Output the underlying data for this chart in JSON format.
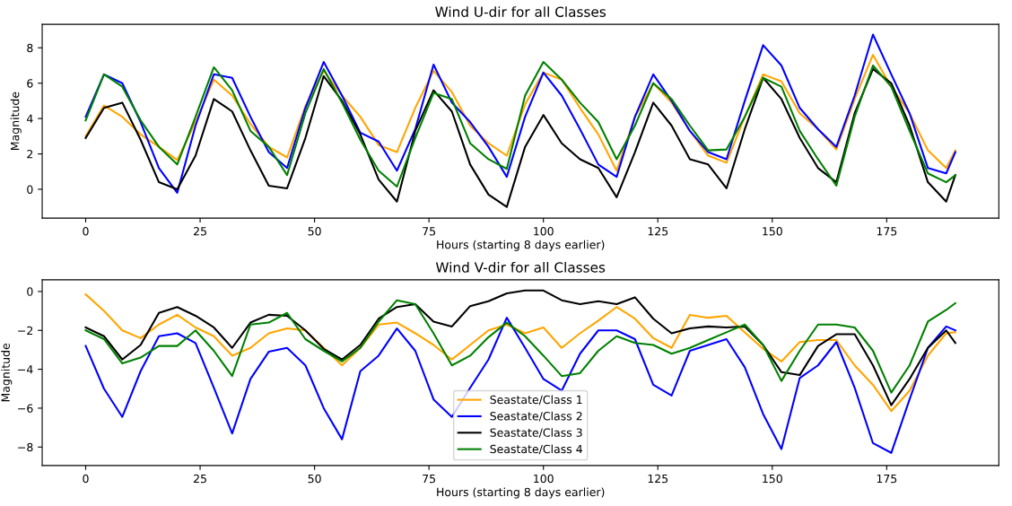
{
  "chart_data": [
    {
      "type": "line",
      "title": "Wind U-dir for all Classes",
      "xlabel": "Hours (starting 8 days earlier)",
      "ylabel": "Magnitude",
      "x": [
        0,
        4,
        8,
        12,
        16,
        20,
        24,
        28,
        32,
        36,
        40,
        44,
        48,
        52,
        56,
        60,
        64,
        68,
        72,
        76,
        80,
        84,
        88,
        92,
        96,
        100,
        104,
        108,
        112,
        116,
        120,
        124,
        128,
        132,
        136,
        140,
        144,
        148,
        152,
        156,
        160,
        164,
        168,
        172,
        176,
        180,
        184,
        188,
        190
      ],
      "xlim": [
        -9.5,
        199.5
      ],
      "xticks": [
        0,
        25,
        50,
        75,
        100,
        125,
        150,
        175
      ],
      "ylim": [
        -1.63,
        9.33
      ],
      "yticks": [
        0,
        2,
        4,
        6,
        8
      ],
      "grid": false,
      "legend": false,
      "series": [
        {
          "color": "#ffa500",
          "values": [
            3.0,
            4.74,
            4.1,
            3.1,
            2.4,
            1.65,
            3.8,
            6.2,
            5.3,
            3.7,
            2.4,
            1.8,
            4.7,
            6.7,
            5.3,
            4.1,
            2.5,
            2.1,
            4.6,
            6.7,
            5.5,
            3.6,
            2.6,
            1.9,
            4.8,
            6.6,
            6.2,
            4.6,
            3.1,
            1.05,
            4.1,
            6.0,
            4.9,
            3.3,
            1.9,
            1.5,
            4.1,
            6.5,
            6.1,
            4.3,
            3.4,
            2.25,
            5.1,
            7.6,
            5.8,
            4.3,
            2.2,
            1.2,
            2.2
          ]
        },
        {
          "color": "#0000ff",
          "values": [
            4.1,
            6.5,
            6.0,
            3.8,
            1.2,
            -0.2,
            3.6,
            6.5,
            6.3,
            4.1,
            2.1,
            1.2,
            4.6,
            7.2,
            5.3,
            3.2,
            2.7,
            1.05,
            3.4,
            7.05,
            4.9,
            3.8,
            2.4,
            0.7,
            4.1,
            6.6,
            5.3,
            3.4,
            1.4,
            0.7,
            4.1,
            6.5,
            5.0,
            3.3,
            2.1,
            1.7,
            5.0,
            8.15,
            7.0,
            4.6,
            3.4,
            2.4,
            5.3,
            8.75,
            6.5,
            4.3,
            1.2,
            0.9,
            2.1
          ]
        },
        {
          "color": "#000000",
          "values": [
            2.9,
            4.6,
            4.9,
            2.8,
            0.4,
            0.0,
            1.9,
            5.1,
            4.4,
            2.2,
            0.2,
            0.05,
            2.9,
            6.4,
            5.0,
            3.1,
            0.55,
            -0.7,
            3.3,
            5.6,
            4.4,
            1.4,
            -0.3,
            -1.0,
            2.4,
            4.2,
            2.6,
            1.7,
            1.2,
            -0.45,
            2.1,
            4.9,
            3.6,
            1.7,
            1.4,
            0.05,
            3.4,
            6.3,
            5.1,
            2.9,
            1.2,
            0.4,
            4.3,
            6.8,
            6.0,
            3.6,
            0.4,
            -0.7,
            0.8
          ]
        },
        {
          "color": "#008000",
          "values": [
            3.9,
            6.5,
            5.8,
            3.9,
            2.4,
            1.4,
            4.1,
            6.9,
            5.6,
            3.3,
            2.4,
            0.8,
            4.3,
            6.8,
            4.9,
            2.8,
            1.05,
            0.15,
            2.9,
            5.45,
            5.1,
            2.6,
            1.7,
            1.15,
            5.3,
            7.2,
            6.2,
            4.9,
            3.8,
            1.7,
            3.6,
            6.0,
            5.1,
            3.6,
            2.2,
            2.25,
            4.1,
            6.3,
            5.8,
            3.3,
            1.7,
            0.2,
            4.1,
            7.0,
            5.8,
            3.3,
            0.9,
            0.4,
            0.8
          ]
        }
      ]
    },
    {
      "type": "line",
      "title": "Wind V-dir for all Classes",
      "xlabel": "Hours (starting 8 days earlier)",
      "ylabel": "Magnitude",
      "x": [
        0,
        4,
        8,
        12,
        16,
        20,
        24,
        28,
        32,
        36,
        40,
        44,
        48,
        52,
        56,
        60,
        64,
        68,
        72,
        76,
        80,
        84,
        88,
        92,
        96,
        100,
        104,
        108,
        112,
        116,
        120,
        124,
        128,
        132,
        136,
        140,
        144,
        148,
        152,
        156,
        160,
        164,
        168,
        172,
        176,
        180,
        184,
        188,
        190
      ],
      "xlim": [
        -9.5,
        199.5
      ],
      "xticks": [
        0,
        25,
        50,
        75,
        100,
        125,
        150,
        175
      ],
      "ylim": [
        -8.95,
        0.6
      ],
      "yticks": [
        {
          "value": -8,
          "label": "−8"
        },
        {
          "value": -6,
          "label": "−6"
        },
        {
          "value": -4,
          "label": "−4"
        },
        {
          "value": -2,
          "label": "−2"
        },
        0
      ],
      "grid": false,
      "legend": "bottom",
      "series": [
        {
          "name": "Seastate/Class 1",
          "color": "#ffa500",
          "values": [
            -0.15,
            -1.0,
            -2.0,
            -2.4,
            -1.7,
            -1.2,
            -1.85,
            -2.3,
            -3.3,
            -2.9,
            -2.15,
            -1.9,
            -2.0,
            -2.9,
            -3.8,
            -2.9,
            -1.7,
            -1.6,
            -2.15,
            -2.75,
            -3.5,
            -2.75,
            -2.0,
            -1.7,
            -2.15,
            -1.85,
            -2.9,
            -2.15,
            -1.5,
            -0.8,
            -1.4,
            -2.4,
            -2.9,
            -1.2,
            -1.35,
            -1.25,
            -2.1,
            -2.95,
            -3.6,
            -2.6,
            -2.5,
            -2.5,
            -3.8,
            -4.8,
            -6.15,
            -5.1,
            -3.3,
            -2.15,
            -2.1
          ]
        },
        {
          "name": "Seastate/Class 2",
          "color": "#0000ff",
          "values": [
            -2.8,
            -5.0,
            -6.45,
            -4.1,
            -2.3,
            -2.15,
            -2.65,
            -4.95,
            -7.3,
            -4.5,
            -3.1,
            -2.9,
            -3.8,
            -6.0,
            -7.6,
            -4.1,
            -3.3,
            -1.9,
            -3.05,
            -5.55,
            -6.45,
            -4.95,
            -3.5,
            -1.35,
            -2.9,
            -4.5,
            -5.1,
            -3.2,
            -2.0,
            -2.0,
            -2.45,
            -4.8,
            -5.35,
            -3.05,
            -2.75,
            -2.45,
            -3.9,
            -6.3,
            -8.1,
            -4.45,
            -3.8,
            -2.6,
            -4.95,
            -7.8,
            -8.3,
            -5.55,
            -2.9,
            -1.8,
            -2.0
          ]
        },
        {
          "name": "Seastate/Class 3",
          "color": "#000000",
          "values": [
            -1.85,
            -2.3,
            -3.5,
            -2.75,
            -1.1,
            -0.8,
            -1.25,
            -1.85,
            -2.9,
            -1.6,
            -1.2,
            -1.25,
            -2.0,
            -2.95,
            -3.5,
            -2.75,
            -1.4,
            -0.8,
            -0.65,
            -1.55,
            -1.8,
            -0.75,
            -0.5,
            -0.1,
            0.05,
            0.05,
            -0.45,
            -0.65,
            -0.5,
            -0.65,
            -0.3,
            -1.4,
            -2.15,
            -1.9,
            -1.8,
            -1.85,
            -1.8,
            -2.75,
            -4.15,
            -4.3,
            -2.8,
            -2.2,
            -2.2,
            -3.8,
            -5.85,
            -4.5,
            -2.9,
            -2.0,
            -2.65
          ]
        },
        {
          "name": "Seastate/Class 4",
          "color": "#008000",
          "values": [
            -2.0,
            -2.45,
            -3.7,
            -3.4,
            -2.8,
            -2.8,
            -2.0,
            -3.05,
            -4.35,
            -1.7,
            -1.6,
            -1.1,
            -2.45,
            -3.05,
            -3.6,
            -2.9,
            -1.55,
            -0.45,
            -0.65,
            -2.15,
            -3.8,
            -3.3,
            -2.35,
            -1.6,
            -2.3,
            -3.3,
            -4.35,
            -4.2,
            -3.05,
            -2.3,
            -2.65,
            -2.75,
            -3.2,
            -2.9,
            -2.5,
            -2.1,
            -1.7,
            -2.75,
            -4.6,
            -3.05,
            -1.7,
            -1.7,
            -1.85,
            -3.05,
            -5.2,
            -3.8,
            -1.55,
            -0.95,
            -0.6
          ]
        }
      ]
    }
  ]
}
